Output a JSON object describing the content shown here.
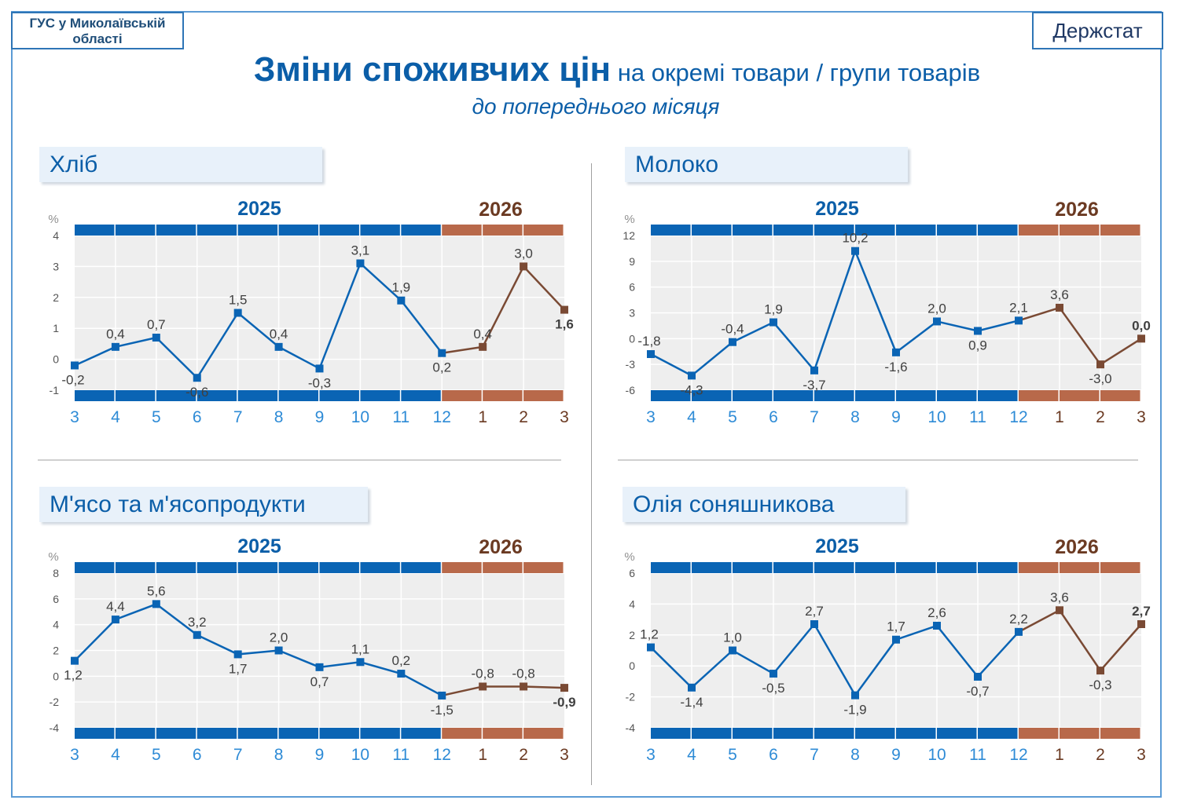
{
  "header": {
    "org_line1": "ГУС у Миколаївській",
    "org_line2": "області",
    "brand": "Держстат",
    "title_main": "Зміни споживчих цін",
    "title_rest": " на окремі товари / групи товарів",
    "subtitle": "до попереднього місяця"
  },
  "colors": {
    "blue": "#0a64b4",
    "brown": "#7a4a34",
    "band_2026": "#b8694a",
    "plot_bg": "#eeeeee",
    "label": "#404040"
  },
  "chart_data": [
    {
      "type": "line",
      "title": "Хліб",
      "unit": "%",
      "year_labels": [
        "2025",
        "2026"
      ],
      "x": [
        "3",
        "4",
        "5",
        "6",
        "7",
        "8",
        "9",
        "10",
        "11",
        "12",
        "1",
        "2",
        "3"
      ],
      "values": [
        -0.2,
        0.4,
        0.7,
        -0.6,
        1.5,
        0.4,
        -0.3,
        3.1,
        1.9,
        0.2,
        0.4,
        3.0,
        1.6
      ],
      "data_labels": [
        "-0,2",
        "0,4",
        "0,7",
        "-0,6",
        "1,5",
        "0,4",
        "-0,3",
        "3,1",
        "1,9",
        "0,2",
        "0,4",
        "3,0",
        "1,6"
      ],
      "ylim": [
        -1,
        4
      ],
      "yticks": [
        -1,
        0,
        1,
        2,
        3,
        4
      ],
      "grid": true
    },
    {
      "type": "line",
      "title": "Молоко",
      "unit": "%",
      "year_labels": [
        "2025",
        "2026"
      ],
      "x": [
        "3",
        "4",
        "5",
        "6",
        "7",
        "8",
        "9",
        "10",
        "11",
        "12",
        "1",
        "2",
        "3"
      ],
      "values": [
        -1.8,
        -4.3,
        -0.4,
        1.9,
        -3.7,
        10.2,
        -1.6,
        2.0,
        0.9,
        2.1,
        3.6,
        -3.0,
        0.0
      ],
      "data_labels": [
        "-1,8",
        "-4,3",
        "-0,4",
        "1,9",
        "-3,7",
        "10,2",
        "-1,6",
        "2,0",
        "0,9",
        "2,1",
        "3,6",
        "-3,0",
        "0,0"
      ],
      "ylim": [
        -6,
        12
      ],
      "yticks": [
        -6,
        -3,
        0,
        3,
        6,
        9,
        12
      ],
      "grid": true
    },
    {
      "type": "line",
      "title": "М'ясо та м'ясопродукти",
      "unit": "%",
      "year_labels": [
        "2025",
        "2026"
      ],
      "x": [
        "3",
        "4",
        "5",
        "6",
        "7",
        "8",
        "9",
        "10",
        "11",
        "12",
        "1",
        "2",
        "3"
      ],
      "values": [
        1.2,
        4.4,
        5.6,
        3.2,
        1.7,
        2.0,
        0.7,
        1.1,
        0.2,
        -1.5,
        -0.8,
        -0.8,
        -0.9
      ],
      "data_labels": [
        "1,2",
        "4,4",
        "5,6",
        "3,2",
        "1,7",
        "2,0",
        "0,7",
        "1,1",
        "0,2",
        "-1,5",
        "-0,8",
        "-0,8",
        "-0,9"
      ],
      "ylim": [
        -4,
        8
      ],
      "yticks": [
        -4,
        -2,
        0,
        2,
        4,
        6,
        8
      ],
      "grid": true
    },
    {
      "type": "line",
      "title": "Олія соняшникова",
      "unit": "%",
      "year_labels": [
        "2025",
        "2026"
      ],
      "x": [
        "3",
        "4",
        "5",
        "6",
        "7",
        "8",
        "9",
        "10",
        "11",
        "12",
        "1",
        "2",
        "3"
      ],
      "values": [
        1.2,
        -1.4,
        1.0,
        -0.5,
        2.7,
        -1.9,
        1.7,
        2.6,
        -0.7,
        2.2,
        3.6,
        -0.3,
        2.7
      ],
      "data_labels": [
        "1,2",
        "-1,4",
        "1,0",
        "-0,5",
        "2,7",
        "-1,9",
        "1,7",
        "2,6",
        "-0,7",
        "2,2",
        "3,6",
        "-0,3",
        "2,7"
      ],
      "ylim": [
        -4,
        6
      ],
      "yticks": [
        -4,
        -2,
        0,
        2,
        4,
        6
      ],
      "grid": true
    }
  ]
}
